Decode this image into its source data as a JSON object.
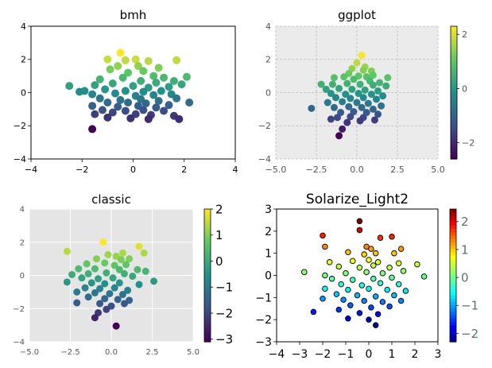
{
  "chart_data": [
    {
      "type": "scatter",
      "title": "bmh",
      "colormap": "viridis",
      "grid": false,
      "colorbar": false,
      "xlim": [
        -4,
        4
      ],
      "ylim": [
        -4,
        4
      ],
      "xticks": [
        "−4",
        "−2",
        "0",
        "2",
        "4"
      ],
      "yticks": [
        "−4",
        "−2",
        "0",
        "2",
        "4"
      ],
      "points": [
        [
          -0.5,
          2.4
        ],
        [
          -0.3,
          1.95
        ],
        [
          0.1,
          2.0
        ],
        [
          -1.0,
          2.0
        ],
        [
          0.6,
          1.9
        ],
        [
          1.7,
          1.95
        ],
        [
          0.2,
          1.6
        ],
        [
          -0.9,
          1.4
        ],
        [
          -0.6,
          1.6
        ],
        [
          0.4,
          1.3
        ],
        [
          1.0,
          1.5
        ],
        [
          -0.2,
          1.2
        ],
        [
          0.8,
          1.0
        ],
        [
          1.2,
          0.9
        ],
        [
          2.1,
          0.95
        ],
        [
          -1.3,
          0.8
        ],
        [
          -0.4,
          0.9
        ],
        [
          0.3,
          0.7
        ],
        [
          0.9,
          0.6
        ],
        [
          1.6,
          0.7
        ],
        [
          -2.5,
          0.4
        ],
        [
          -1.5,
          0.45
        ],
        [
          -0.8,
          0.55
        ],
        [
          0.0,
          0.4
        ],
        [
          0.6,
          0.3
        ],
        [
          1.4,
          0.35
        ],
        [
          1.9,
          0.5
        ],
        [
          -1.9,
          0.1
        ],
        [
          -1.1,
          0.2
        ],
        [
          -0.3,
          0.1
        ],
        [
          0.4,
          0.05
        ],
        [
          1.1,
          0.1
        ],
        [
          -2.1,
          0.05
        ],
        [
          -1.6,
          -0.1
        ],
        [
          -0.7,
          -0.05
        ],
        [
          0.1,
          -0.2
        ],
        [
          0.8,
          -0.15
        ],
        [
          1.5,
          -0.1
        ],
        [
          -1.3,
          -0.35
        ],
        [
          -0.5,
          -0.45
        ],
        [
          0.3,
          -0.4
        ],
        [
          1.0,
          -0.5
        ],
        [
          1.7,
          -0.35
        ],
        [
          -1.0,
          -0.6
        ],
        [
          -0.2,
          -0.6
        ],
        [
          0.5,
          -0.65
        ],
        [
          2.2,
          -0.6
        ],
        [
          -1.6,
          -0.8
        ],
        [
          -0.6,
          -0.85
        ],
        [
          0.2,
          -0.8
        ],
        [
          0.9,
          -0.9
        ],
        [
          1.4,
          -0.75
        ],
        [
          -1.2,
          -1.05
        ],
        [
          -0.3,
          -1.1
        ],
        [
          0.4,
          -1.05
        ],
        [
          1.2,
          -1.1
        ],
        [
          1.6,
          -1.4
        ],
        [
          -1.5,
          -1.3
        ],
        [
          -0.8,
          -1.2
        ],
        [
          0.1,
          -1.3
        ],
        [
          0.7,
          -1.35
        ],
        [
          -1.0,
          -1.5
        ],
        [
          -0.1,
          -1.55
        ],
        [
          0.6,
          -1.6
        ],
        [
          1.8,
          -1.6
        ],
        [
          -1.6,
          -2.2
        ]
      ]
    },
    {
      "type": "scatter",
      "title": "ggplot",
      "colormap": "viridis",
      "grid": true,
      "colorbar": true,
      "clim": [
        -2.6,
        2.3
      ],
      "xlim": [
        -5,
        5
      ],
      "ylim": [
        -4,
        4
      ],
      "xticks": [
        "−5.0",
        "−2.5",
        "0.0",
        "2.5",
        "5.0"
      ],
      "yticks": [
        "−4",
        "−2",
        "0",
        "2",
        "4"
      ],
      "cbar_ticks": [
        "2",
        "0",
        "−2"
      ],
      "points": [
        [
          0.3,
          2.25
        ],
        [
          0.0,
          1.8
        ],
        [
          0.5,
          1.55
        ],
        [
          -0.3,
          1.45
        ],
        [
          0.4,
          1.35
        ],
        [
          0.9,
          1.3
        ],
        [
          -0.5,
          1.15
        ],
        [
          0.1,
          1.0
        ],
        [
          0.6,
          0.95
        ],
        [
          1.0,
          1.05
        ],
        [
          1.9,
          0.9
        ],
        [
          -1.4,
          0.9
        ],
        [
          -0.8,
          0.95
        ],
        [
          -0.2,
          0.8
        ],
        [
          0.8,
          0.7
        ],
        [
          1.4,
          0.6
        ],
        [
          -2.2,
          0.5
        ],
        [
          -1.5,
          0.5
        ],
        [
          -0.6,
          0.55
        ],
        [
          0.2,
          0.5
        ],
        [
          1.0,
          0.45
        ],
        [
          1.8,
          0.4
        ],
        [
          -1.9,
          0.2
        ],
        [
          -1.1,
          0.25
        ],
        [
          -0.3,
          0.2
        ],
        [
          0.5,
          0.15
        ],
        [
          1.3,
          0.1
        ],
        [
          -1.6,
          -0.05
        ],
        [
          -0.7,
          -0.1
        ],
        [
          0.1,
          -0.05
        ],
        [
          0.9,
          -0.1
        ],
        [
          1.6,
          -0.2
        ],
        [
          -1.3,
          -0.3
        ],
        [
          -0.4,
          -0.35
        ],
        [
          0.4,
          -0.3
        ],
        [
          1.2,
          -0.4
        ],
        [
          -2.8,
          -0.95
        ],
        [
          -1.8,
          -0.6
        ],
        [
          -0.9,
          -0.55
        ],
        [
          0.0,
          -0.6
        ],
        [
          0.7,
          -0.65
        ],
        [
          1.5,
          -0.8
        ],
        [
          -1.4,
          -0.9
        ],
        [
          -0.5,
          -0.85
        ],
        [
          0.3,
          -0.9
        ],
        [
          1.0,
          -1.0
        ],
        [
          -1.0,
          -1.2
        ],
        [
          -0.2,
          -1.15
        ],
        [
          0.6,
          -1.2
        ],
        [
          1.3,
          -1.3
        ],
        [
          -1.2,
          -1.5
        ],
        [
          -0.4,
          -1.45
        ],
        [
          0.4,
          -1.5
        ],
        [
          1.1,
          -1.65
        ],
        [
          -0.6,
          -1.8
        ],
        [
          0.2,
          -1.7
        ],
        [
          -1.6,
          -1.6
        ],
        [
          -0.9,
          -2.2
        ],
        [
          -1.1,
          -2.6
        ]
      ]
    },
    {
      "type": "scatter",
      "title": "classic",
      "colormap": "viridis",
      "grid": true,
      "colorbar": true,
      "clim": [
        -3.1,
        2.0
      ],
      "xlim": [
        -5,
        5
      ],
      "ylim": [
        -4,
        4
      ],
      "xticks": [
        "−5.0",
        "−2.5",
        "0.0",
        "2.5",
        "5.0"
      ],
      "yticks": [
        "−4",
        "−2",
        "0",
        "2",
        "4"
      ],
      "cbar_ticks": [
        "2",
        "1",
        "0",
        "−1",
        "−2",
        "−3"
      ],
      "points": [
        [
          -0.5,
          2.0
        ],
        [
          1.7,
          1.75
        ],
        [
          -2.7,
          1.45
        ],
        [
          0.7,
          1.35
        ],
        [
          2.0,
          1.35
        ],
        [
          -0.2,
          1.25
        ],
        [
          0.3,
          1.15
        ],
        [
          -0.9,
          1.0
        ],
        [
          0.6,
          0.95
        ],
        [
          1.1,
          1.0
        ],
        [
          -1.5,
          0.7
        ],
        [
          -0.4,
          0.75
        ],
        [
          0.2,
          0.6
        ],
        [
          0.9,
          0.65
        ],
        [
          -2.0,
          0.4
        ],
        [
          -1.0,
          0.4
        ],
        [
          0.5,
          0.35
        ],
        [
          1.6,
          0.35
        ],
        [
          -2.4,
          0.05
        ],
        [
          -1.4,
          0.1
        ],
        [
          -0.3,
          0.15
        ],
        [
          0.8,
          0.1
        ],
        [
          2.1,
          0.25
        ],
        [
          -1.8,
          -0.15
        ],
        [
          -0.8,
          -0.2
        ],
        [
          0.1,
          -0.15
        ],
        [
          1.3,
          -0.05
        ],
        [
          -2.7,
          -0.4
        ],
        [
          -1.2,
          -0.45
        ],
        [
          -0.4,
          -0.5
        ],
        [
          0.5,
          -0.45
        ],
        [
          1.7,
          -0.55
        ],
        [
          2.6,
          -0.35
        ],
        [
          -1.6,
          -0.75
        ],
        [
          -0.7,
          -0.8
        ],
        [
          0.2,
          -0.75
        ],
        [
          1.0,
          -0.9
        ],
        [
          -2.1,
          -1.0
        ],
        [
          -1.0,
          -1.05
        ],
        [
          -0.1,
          -1.1
        ],
        [
          0.7,
          -1.15
        ],
        [
          -1.4,
          -1.3
        ],
        [
          -0.4,
          -1.4
        ],
        [
          0.4,
          -1.45
        ],
        [
          1.1,
          -1.5
        ],
        [
          -2.1,
          -1.65
        ],
        [
          -0.7,
          -1.7
        ],
        [
          0.0,
          -1.85
        ],
        [
          0.8,
          -1.7
        ],
        [
          -0.8,
          -2.25
        ],
        [
          -0.3,
          -2.05
        ],
        [
          -1.0,
          -2.55
        ],
        [
          0.3,
          -3.05
        ]
      ]
    },
    {
      "type": "scatter",
      "title": "Solarize_Light2",
      "colormap": "jet",
      "grid": false,
      "colorbar": true,
      "clim": [
        -2.3,
        2.45
      ],
      "xlim": [
        -4,
        3
      ],
      "ylim": [
        -3,
        3
      ],
      "xticks": [
        "−4",
        "−3",
        "−2",
        "−1",
        "0",
        "1",
        "2",
        "3"
      ],
      "yticks": [
        "−3",
        "−2",
        "−1",
        "0",
        "1",
        "2",
        "3"
      ],
      "cbar_ticks": [
        "2",
        "1",
        "0",
        "−1",
        "−2"
      ],
      "points": [
        [
          -0.4,
          2.45
        ],
        [
          -0.4,
          2.05
        ],
        [
          -2.0,
          1.8
        ],
        [
          0.5,
          1.7
        ],
        [
          1.0,
          1.75
        ],
        [
          -1.9,
          1.3
        ],
        [
          -0.1,
          1.3
        ],
        [
          0.1,
          1.2
        ],
        [
          1.4,
          1.2
        ],
        [
          -0.9,
          1.05
        ],
        [
          -0.2,
          0.95
        ],
        [
          0.3,
          1.0
        ],
        [
          1.1,
          1.0
        ],
        [
          -1.7,
          0.6
        ],
        [
          -0.7,
          0.65
        ],
        [
          0.0,
          0.7
        ],
        [
          0.4,
          0.6
        ],
        [
          1.3,
          0.55
        ],
        [
          2.1,
          0.5
        ],
        [
          -1.3,
          0.4
        ],
        [
          -0.4,
          0.35
        ],
        [
          0.2,
          0.45
        ],
        [
          0.9,
          0.35
        ],
        [
          -2.8,
          0.15
        ],
        [
          -1.9,
          0.0
        ],
        [
          -1.0,
          0.1
        ],
        [
          -0.1,
          0.15
        ],
        [
          0.6,
          0.1
        ],
        [
          1.5,
          0.2
        ],
        [
          2.4,
          -0.05
        ],
        [
          -1.6,
          -0.15
        ],
        [
          -0.7,
          -0.2
        ],
        [
          0.2,
          -0.15
        ],
        [
          1.0,
          -0.1
        ],
        [
          -1.2,
          -0.4
        ],
        [
          -0.3,
          -0.45
        ],
        [
          0.5,
          -0.35
        ],
        [
          1.3,
          -0.4
        ],
        [
          -1.9,
          -0.6
        ],
        [
          -0.9,
          -0.65
        ],
        [
          0.0,
          -0.6
        ],
        [
          0.8,
          -0.65
        ],
        [
          1.6,
          -0.7
        ],
        [
          -1.4,
          -0.85
        ],
        [
          -0.5,
          -0.9
        ],
        [
          0.3,
          -0.95
        ],
        [
          1.1,
          -0.9
        ],
        [
          -2.0,
          -1.05
        ],
        [
          -1.1,
          -1.1
        ],
        [
          -0.2,
          -1.15
        ],
        [
          0.6,
          -1.2
        ],
        [
          1.4,
          -1.15
        ],
        [
          -0.8,
          -1.35
        ],
        [
          0.1,
          -1.45
        ],
        [
          0.9,
          -1.4
        ],
        [
          -2.4,
          -1.65
        ],
        [
          -1.3,
          -1.55
        ],
        [
          -0.4,
          -1.7
        ],
        [
          0.4,
          -1.75
        ],
        [
          -0.9,
          -1.95
        ],
        [
          0.0,
          -2.0
        ],
        [
          0.3,
          -2.25
        ]
      ]
    }
  ]
}
